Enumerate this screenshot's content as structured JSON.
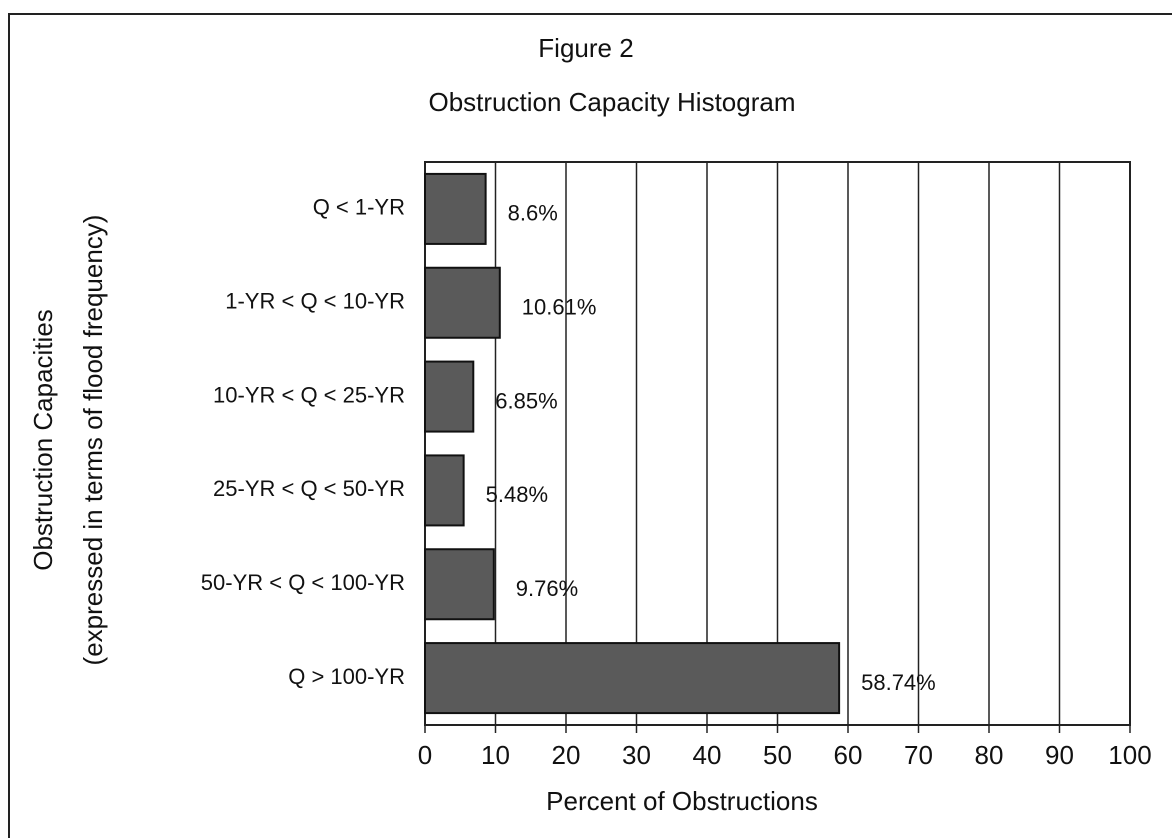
{
  "chart_data": {
    "type": "hbar",
    "title": "Figure 2",
    "subtitle": "Obstruction Capacity Histogram",
    "xlabel": "Percent of Obstructions",
    "ylabel": "Obstruction Capacities",
    "ylabel_note": "(expressed in terms of flood frequency)",
    "categories": [
      "Q < 1-YR",
      "1-YR < Q < 10-YR",
      "10-YR < Q < 25-YR",
      "25-YR < Q < 50-YR",
      "50-YR < Q < 100-YR",
      "Q > 100-YR"
    ],
    "values": [
      8.6,
      10.61,
      6.85,
      5.48,
      9.76,
      58.74
    ],
    "value_labels": [
      "8.6%",
      "10.61%",
      "6.85%",
      "5.48%",
      "9.76%",
      "58.74%"
    ],
    "color": "#5a5a5a",
    "xlim": [
      0,
      100
    ],
    "xticks": [
      0,
      10,
      20,
      30,
      40,
      50,
      60,
      70,
      80,
      90,
      100
    ],
    "grid": true
  }
}
